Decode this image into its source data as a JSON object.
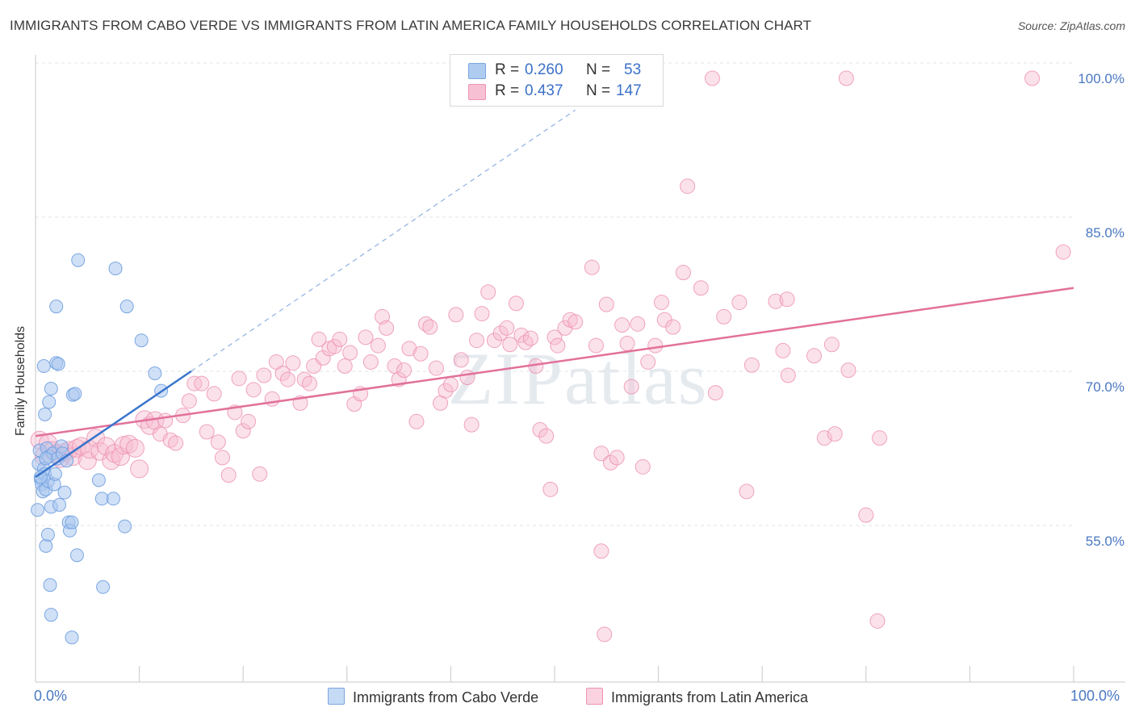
{
  "title": "IMMIGRANTS FROM CABO VERDE VS IMMIGRANTS FROM LATIN AMERICA FAMILY HOUSEHOLDS CORRELATION CHART",
  "source": "Source: ZipAtlas.com",
  "watermark": "ZIPatlas",
  "legend": {
    "rows": [
      {
        "r_label": "R =",
        "r_value": "0.260",
        "n_label": "N =",
        "n_value": "53",
        "color": "#aecbf0",
        "border": "#7aa6e0"
      },
      {
        "r_label": "R =",
        "r_value": "0.437",
        "n_label": "N =",
        "n_value": "147",
        "color": "#f8c1d3",
        "border": "#ee93b1"
      }
    ]
  },
  "bottom_legend": {
    "series1": "Immigrants from Cabo Verde",
    "series2": "Immigrants from Latin America"
  },
  "chart_data": {
    "type": "scatter",
    "xlabel": "",
    "ylabel": "Family Households",
    "x_tick_labels": [
      "0.0%",
      "100.0%"
    ],
    "y_tick_labels": [
      "55.0%",
      "70.0%",
      "85.0%",
      "100.0%"
    ],
    "y_ticks": [
      55,
      70,
      85,
      100
    ],
    "xlim": [
      0,
      100
    ],
    "ylim": [
      42,
      102
    ],
    "grid": true,
    "colors": {
      "blue_fill": "#a9c7ee",
      "blue_stroke": "#6f9fe0",
      "blue_line": "#3a75cc",
      "pink_fill": "#f6bcd0",
      "pink_stroke": "#ec8fb0",
      "pink_line": "#e2719a"
    },
    "series": [
      {
        "name": "Immigrants from Cabo Verde",
        "trend": {
          "x": [
            0,
            15
          ],
          "y": [
            61.2,
            71.5
          ],
          "extend_to_x": 52
        },
        "points": [
          [
            0.2,
            58.0
          ],
          [
            0.3,
            62.5
          ],
          [
            0.4,
            63.8
          ],
          [
            0.5,
            61.0
          ],
          [
            0.6,
            60.5
          ],
          [
            0.7,
            59.8
          ],
          [
            0.8,
            62.0
          ],
          [
            0.9,
            61.5
          ],
          [
            1.0,
            60.0
          ],
          [
            1.1,
            64.0
          ],
          [
            1.2,
            60.8
          ],
          [
            1.3,
            63.2
          ],
          [
            0.8,
            72.0
          ],
          [
            0.9,
            67.3
          ],
          [
            1.5,
            58.3
          ],
          [
            1.0,
            54.5
          ],
          [
            1.2,
            55.6
          ],
          [
            1.4,
            50.7
          ],
          [
            1.5,
            47.8
          ],
          [
            1.3,
            68.5
          ],
          [
            1.5,
            69.8
          ],
          [
            1.7,
            63.5
          ],
          [
            1.8,
            60.5
          ],
          [
            1.9,
            61.5
          ],
          [
            2.0,
            72.3
          ],
          [
            2.1,
            63.0
          ],
          [
            2.2,
            72.2
          ],
          [
            2.0,
            77.8
          ],
          [
            2.3,
            58.5
          ],
          [
            2.5,
            64.2
          ],
          [
            2.6,
            63.5
          ],
          [
            2.8,
            59.7
          ],
          [
            3.0,
            62.8
          ],
          [
            3.2,
            56.8
          ],
          [
            3.3,
            56.0
          ],
          [
            3.5,
            56.8
          ],
          [
            3.6,
            69.2
          ],
          [
            3.8,
            69.3
          ],
          [
            4.0,
            53.6
          ],
          [
            4.1,
            82.3
          ],
          [
            6.1,
            60.9
          ],
          [
            6.4,
            59.1
          ],
          [
            6.5,
            50.5
          ],
          [
            7.5,
            59.1
          ],
          [
            7.7,
            81.5
          ],
          [
            8.6,
            56.4
          ],
          [
            8.8,
            77.8
          ],
          [
            10.2,
            74.5
          ],
          [
            11.5,
            71.3
          ],
          [
            12.1,
            69.6
          ],
          [
            3.5,
            45.6
          ],
          [
            0.5,
            61.2
          ],
          [
            1.0,
            63.0
          ]
        ]
      },
      {
        "name": "Immigrants from Latin America",
        "trend": {
          "x": [
            0,
            100
          ],
          "y": [
            65.2,
            79.6
          ]
        },
        "points": [
          [
            0.4,
            64.8
          ],
          [
            0.8,
            63.2
          ],
          [
            1.2,
            64.5
          ],
          [
            1.6,
            63.8
          ],
          [
            2.0,
            63.5
          ],
          [
            2.4,
            63.0
          ],
          [
            2.8,
            63.6
          ],
          [
            3.2,
            63.8
          ],
          [
            3.6,
            63.2
          ],
          [
            4.0,
            64.0
          ],
          [
            4.4,
            64.2
          ],
          [
            5.0,
            62.8
          ],
          [
            5.2,
            63.9
          ],
          [
            5.8,
            65.0
          ],
          [
            6.2,
            63.7
          ],
          [
            6.8,
            64.2
          ],
          [
            7.3,
            62.8
          ],
          [
            7.6,
            63.5
          ],
          [
            8.2,
            63.2
          ],
          [
            8.5,
            64.3
          ],
          [
            9.0,
            64.4
          ],
          [
            9.6,
            64.0
          ],
          [
            10.0,
            62.0
          ],
          [
            10.5,
            66.8
          ],
          [
            11.0,
            66.2
          ],
          [
            11.5,
            66.7
          ],
          [
            12.0,
            65.4
          ],
          [
            12.5,
            66.7
          ],
          [
            13.0,
            64.8
          ],
          [
            13.5,
            64.5
          ],
          [
            14.2,
            67.2
          ],
          [
            14.8,
            68.6
          ],
          [
            15.3,
            70.3
          ],
          [
            16.0,
            70.3
          ],
          [
            16.5,
            65.6
          ],
          [
            17.2,
            69.3
          ],
          [
            17.6,
            64.6
          ],
          [
            18.0,
            63.1
          ],
          [
            18.6,
            61.4
          ],
          [
            19.2,
            67.5
          ],
          [
            19.6,
            70.8
          ],
          [
            20.0,
            65.7
          ],
          [
            20.5,
            66.6
          ],
          [
            21.0,
            69.7
          ],
          [
            21.6,
            61.5
          ],
          [
            22.0,
            71.1
          ],
          [
            22.8,
            68.8
          ],
          [
            23.2,
            72.4
          ],
          [
            23.8,
            71.3
          ],
          [
            24.3,
            70.7
          ],
          [
            24.8,
            72.3
          ],
          [
            25.5,
            68.4
          ],
          [
            25.9,
            70.7
          ],
          [
            26.4,
            70.3
          ],
          [
            26.8,
            72.0
          ],
          [
            27.3,
            74.6
          ],
          [
            27.7,
            72.8
          ],
          [
            28.3,
            73.7
          ],
          [
            28.8,
            73.9
          ],
          [
            29.3,
            74.6
          ],
          [
            29.8,
            72.0
          ],
          [
            30.3,
            73.3
          ],
          [
            30.7,
            68.3
          ],
          [
            31.3,
            69.3
          ],
          [
            31.8,
            74.8
          ],
          [
            32.3,
            72.4
          ],
          [
            33.0,
            74.0
          ],
          [
            33.4,
            76.8
          ],
          [
            33.8,
            75.7
          ],
          [
            34.6,
            72.0
          ],
          [
            35.0,
            70.7
          ],
          [
            35.5,
            71.6
          ],
          [
            36.0,
            73.7
          ],
          [
            36.7,
            66.6
          ],
          [
            37.1,
            73.2
          ],
          [
            37.6,
            76.1
          ],
          [
            38.0,
            75.8
          ],
          [
            38.6,
            71.8
          ],
          [
            39.0,
            68.4
          ],
          [
            39.5,
            69.6
          ],
          [
            40.0,
            70.2
          ],
          [
            40.5,
            77.0
          ],
          [
            41.0,
            72.6
          ],
          [
            41.6,
            70.9
          ],
          [
            42.0,
            66.3
          ],
          [
            42.5,
            74.5
          ],
          [
            43.0,
            77.1
          ],
          [
            43.6,
            79.2
          ],
          [
            44.2,
            74.5
          ],
          [
            44.8,
            75.2
          ],
          [
            45.4,
            75.7
          ],
          [
            45.7,
            74.1
          ],
          [
            46.3,
            78.1
          ],
          [
            46.8,
            75.0
          ],
          [
            47.2,
            74.3
          ],
          [
            47.7,
            74.7
          ],
          [
            48.2,
            72.0
          ],
          [
            48.6,
            65.8
          ],
          [
            49.2,
            65.2
          ],
          [
            49.6,
            60.0
          ],
          [
            50.0,
            74.8
          ],
          [
            50.3,
            74.0
          ],
          [
            51.0,
            75.7
          ],
          [
            51.5,
            76.5
          ],
          [
            52.0,
            76.3
          ],
          [
            53.6,
            81.6
          ],
          [
            54.0,
            74.0
          ],
          [
            54.5,
            63.5
          ],
          [
            55.0,
            78.0
          ],
          [
            55.4,
            62.6
          ],
          [
            56.0,
            63.1
          ],
          [
            56.5,
            76.0
          ],
          [
            57.0,
            74.2
          ],
          [
            57.4,
            70.0
          ],
          [
            58.0,
            76.1
          ],
          [
            58.5,
            62.2
          ],
          [
            59.0,
            72.4
          ],
          [
            59.7,
            74.0
          ],
          [
            60.3,
            78.2
          ],
          [
            60.6,
            76.5
          ],
          [
            61.4,
            75.8
          ],
          [
            62.4,
            81.1
          ],
          [
            62.8,
            89.5
          ],
          [
            64.1,
            79.6
          ],
          [
            65.5,
            69.4
          ],
          [
            66.3,
            76.8
          ],
          [
            67.8,
            78.2
          ],
          [
            69.0,
            72.1
          ],
          [
            68.5,
            59.8
          ],
          [
            71.3,
            78.3
          ],
          [
            72.4,
            78.5
          ],
          [
            72.0,
            73.5
          ],
          [
            75.0,
            73.0
          ],
          [
            76.0,
            65.0
          ],
          [
            76.7,
            74.1
          ],
          [
            77.0,
            65.4
          ],
          [
            78.3,
            71.6
          ],
          [
            80.0,
            57.5
          ],
          [
            81.1,
            47.2
          ],
          [
            81.3,
            65.0
          ],
          [
            65.2,
            100.0
          ],
          [
            78.1,
            100.0
          ],
          [
            96.0,
            100.0
          ],
          [
            99.0,
            83.1
          ],
          [
            54.5,
            54.0
          ],
          [
            54.8,
            45.9
          ],
          [
            72.5,
            71.1
          ]
        ]
      }
    ]
  }
}
